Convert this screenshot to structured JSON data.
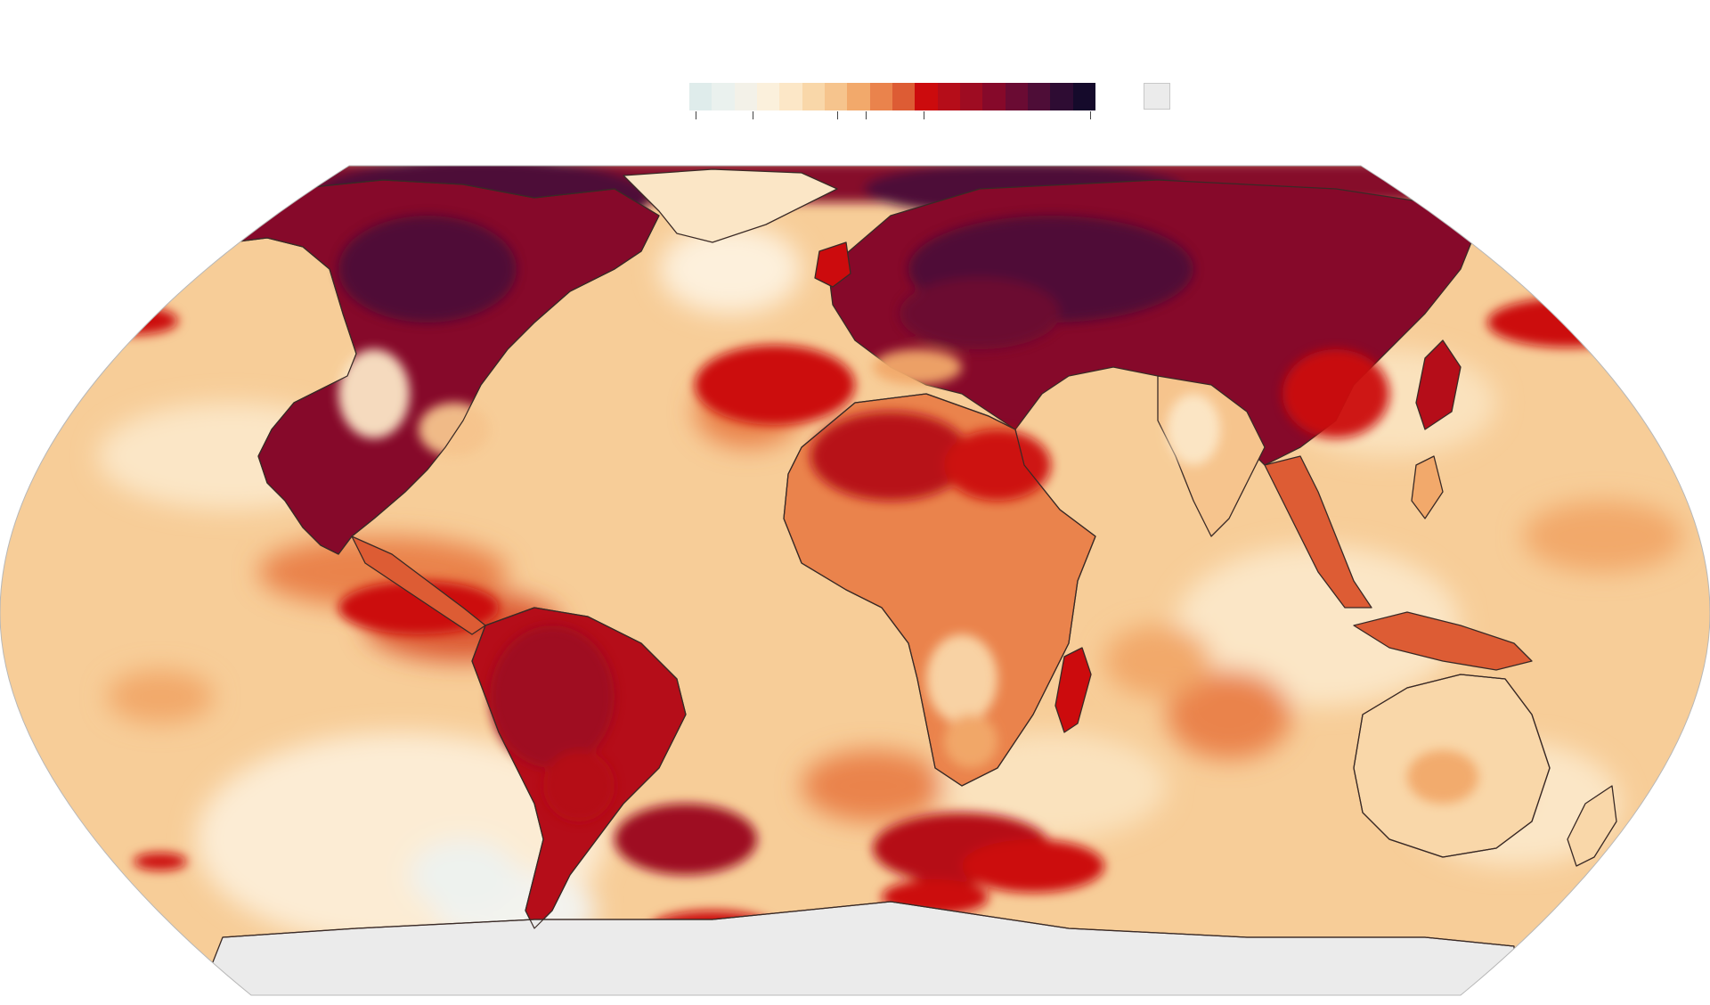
{
  "legend": {
    "scale_colors": [
      "#dfeceb",
      "#eaf1ee",
      "#f3f1e8",
      "#fbf0dc",
      "#fce7c7",
      "#f9d7a9",
      "#f6c48d",
      "#f2a96b",
      "#ea834c",
      "#dd5c34",
      "#cc0b0d",
      "#b50d19",
      "#9e0c22",
      "#86092a",
      "#6a0b33",
      "#4e0d37",
      "#2e0c33",
      "#150a2b"
    ],
    "no_data_color": "#ebebeb"
  },
  "map": {
    "projection": "Robinson",
    "ocean_base_color": "#f7cd98",
    "land_outline_color": "#3a2a26",
    "antarctica_color": "#ebebeb",
    "regions": {
      "arctic_north_america": "#4e0d37",
      "canada": "#86092a",
      "usa_east": "#9e0c22",
      "greenland": "#fce7c7",
      "europe_russia": "#86092a",
      "siberia": "#4e0d37",
      "north_africa_middle_east": "#b50d19",
      "sub_saharan_africa": "#ea834c",
      "south_america_interior": "#b50d19",
      "india": "#f6c48d",
      "east_asia": "#b50d19",
      "australia": "#f9d7a9",
      "southern_ocean_warm": "#b50d19"
    }
  }
}
